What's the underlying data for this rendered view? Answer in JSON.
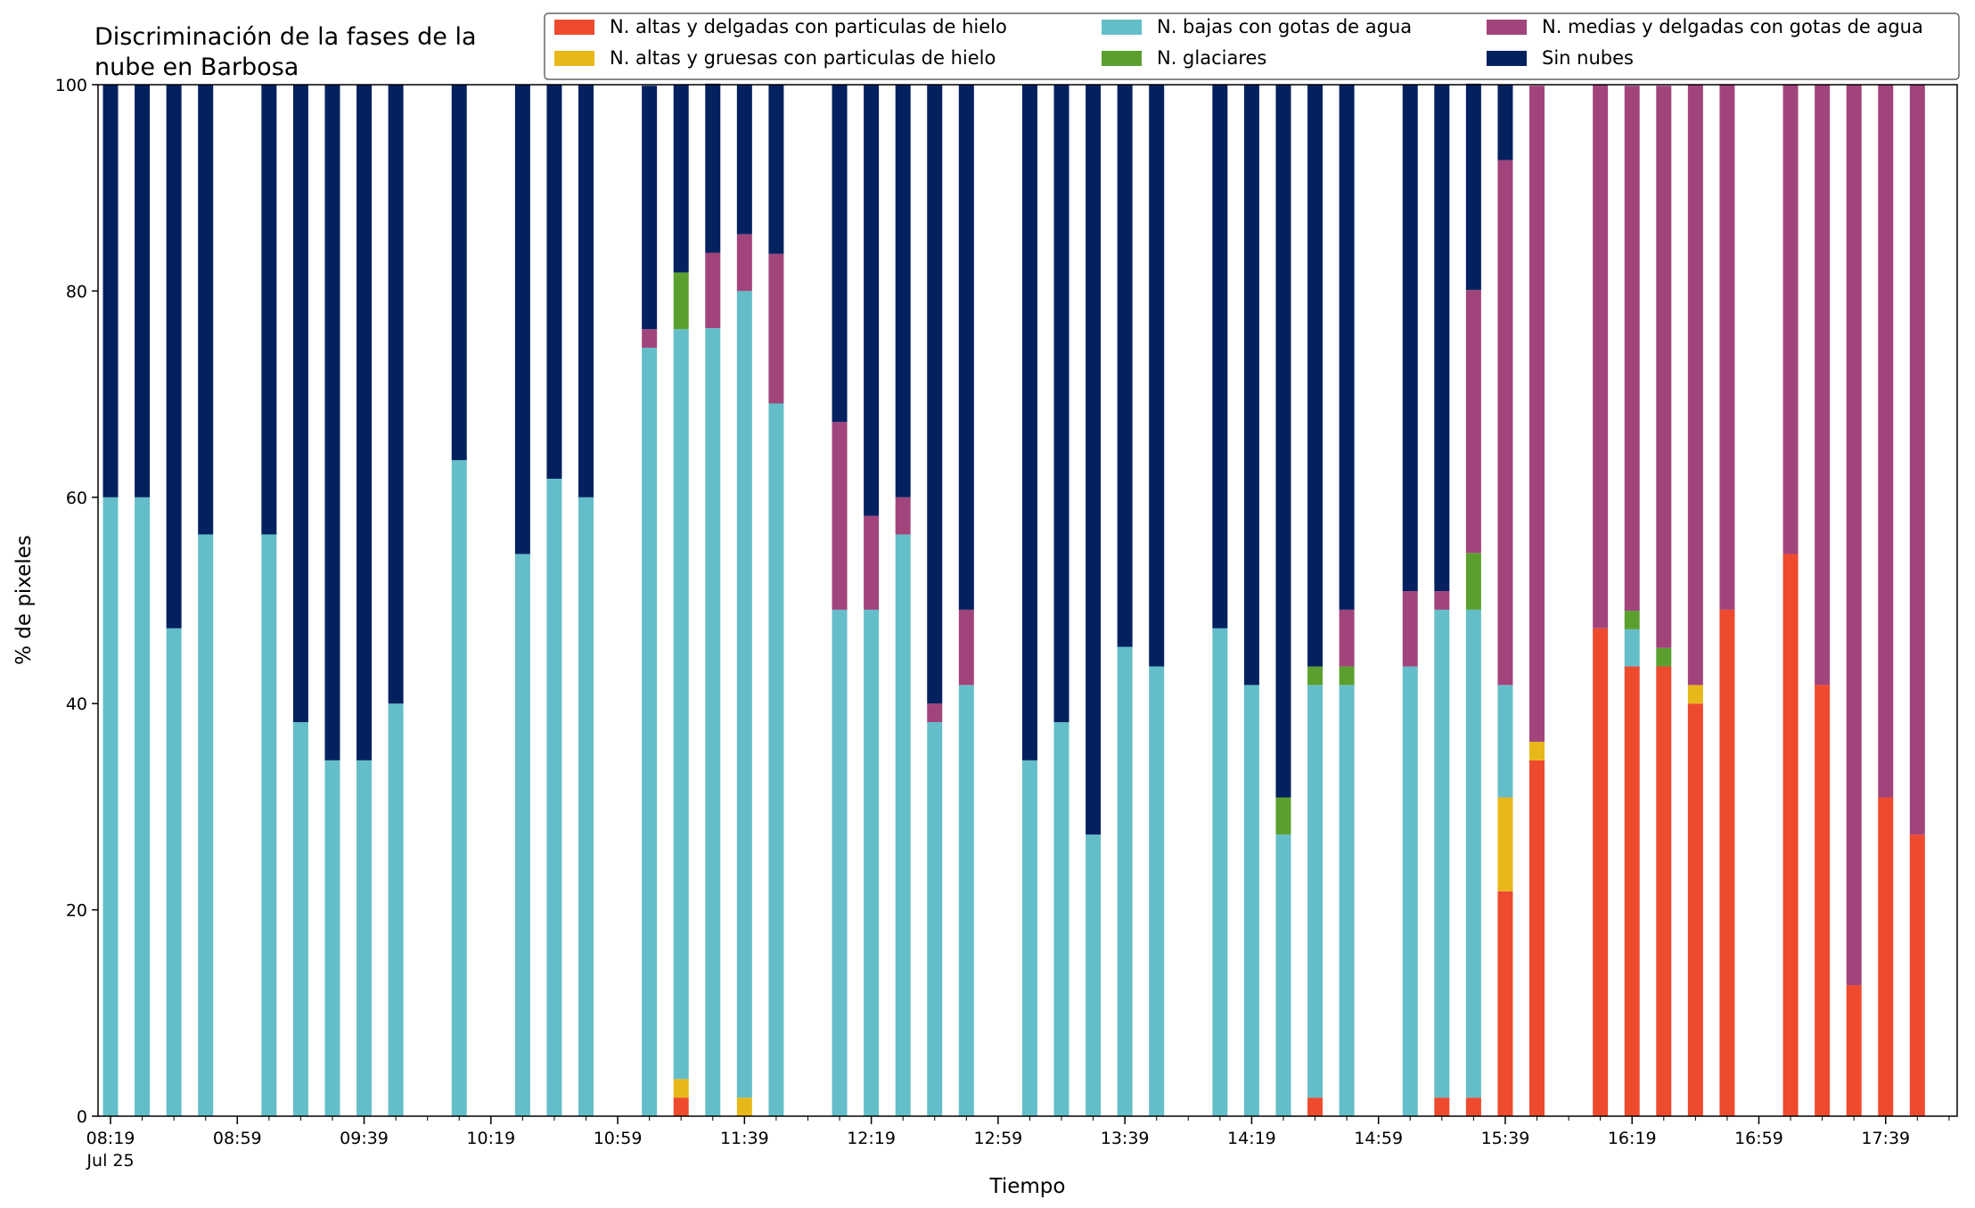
{
  "chart_data": {
    "type": "bar",
    "stacked": true,
    "title_lines": [
      "Discriminación de la fases de la",
      "nube en Barbosa"
    ],
    "xlabel": "Tiempo",
    "ylabel": "% de pixeles",
    "ylim": [
      0,
      100
    ],
    "yticks": [
      0,
      20,
      40,
      60,
      80,
      100
    ],
    "x_unit": "minutes after 08:19 on Jul 25",
    "x_ticks": [
      {
        "x": 0,
        "label": "08:19",
        "sublabel": "Jul 25"
      },
      {
        "x": 40,
        "label": "08:59"
      },
      {
        "x": 80,
        "label": "09:39"
      },
      {
        "x": 120,
        "label": "10:19"
      },
      {
        "x": 160,
        "label": "10:59"
      },
      {
        "x": 200,
        "label": "11:39"
      },
      {
        "x": 240,
        "label": "12:19"
      },
      {
        "x": 280,
        "label": "12:59"
      },
      {
        "x": 320,
        "label": "13:39"
      },
      {
        "x": 360,
        "label": "14:19"
      },
      {
        "x": 400,
        "label": "14:59"
      },
      {
        "x": 440,
        "label": "15:39"
      },
      {
        "x": 480,
        "label": "16:19"
      },
      {
        "x": 520,
        "label": "16:59"
      },
      {
        "x": 560,
        "label": "17:39"
      }
    ],
    "legend_placement": "top-right",
    "grid": false,
    "x": [
      0,
      10,
      20,
      30,
      50,
      60,
      70,
      80,
      90,
      110,
      130,
      140,
      150,
      170,
      180,
      190,
      200,
      210,
      230,
      240,
      250,
      260,
      270,
      290,
      300,
      310,
      320,
      330,
      350,
      360,
      370,
      380,
      390,
      410,
      420,
      430,
      440,
      450,
      470,
      480,
      490,
      500,
      510,
      530,
      540,
      550,
      560,
      570
    ],
    "series": [
      {
        "name": "N. altas y delgadas con particulas de hielo",
        "color": "#EE4A2E",
        "values": [
          0,
          0,
          0,
          0,
          0,
          0,
          0,
          0,
          0,
          0,
          0,
          0,
          0,
          0,
          1.8,
          0,
          0,
          0,
          0,
          0,
          0,
          0,
          0,
          0,
          0,
          0,
          0,
          0,
          0,
          0,
          0,
          1.8,
          0,
          0,
          1.8,
          1.8,
          21.8,
          34.5,
          47.3,
          43.6,
          43.6,
          40,
          49.1,
          54.5,
          41.8,
          12.7,
          30.9,
          27.3
        ]
      },
      {
        "name": "N. altas y gruesas con particulas de hielo",
        "color": "#E8B719",
        "values": [
          0,
          0,
          0,
          0,
          0,
          0,
          0,
          0,
          0,
          0,
          0,
          0,
          0,
          0,
          1.8,
          0,
          1.8,
          0,
          0,
          0,
          0,
          0,
          0,
          0,
          0,
          0,
          0,
          0,
          0,
          0,
          0,
          0,
          0,
          0,
          0,
          0,
          9.1,
          1.8,
          0,
          0,
          0,
          1.8,
          0,
          0,
          0,
          0,
          0,
          0
        ]
      },
      {
        "name": "N. bajas con gotas de agua",
        "color": "#64BEC9",
        "values": [
          60,
          60,
          47.3,
          56.4,
          56.4,
          38.2,
          34.5,
          34.5,
          40,
          63.6,
          54.5,
          61.8,
          60,
          74.5,
          72.7,
          76.4,
          78.2,
          69.1,
          49.1,
          49.1,
          56.4,
          38.2,
          41.8,
          34.5,
          38.2,
          27.3,
          45.5,
          43.6,
          47.3,
          41.8,
          27.3,
          40,
          41.8,
          43.6,
          47.3,
          47.3,
          10.9,
          0,
          0,
          3.6,
          0,
          0,
          0,
          0,
          0,
          0,
          0,
          0
        ]
      },
      {
        "name": "N. glaciares",
        "color": "#5BA02F",
        "values": [
          0,
          0,
          0,
          0,
          0,
          0,
          0,
          0,
          0,
          0,
          0,
          0,
          0,
          0,
          5.5,
          0,
          0,
          0,
          0,
          0,
          0,
          0,
          0,
          0,
          0,
          0,
          0,
          0,
          0,
          0,
          3.6,
          1.8,
          1.8,
          0,
          0,
          5.5,
          0,
          0,
          0,
          1.8,
          1.8,
          0,
          0,
          0,
          0,
          0,
          0,
          0
        ]
      },
      {
        "name": "N. medias y delgadas con gotas de agua",
        "color": "#A2447C",
        "values": [
          0,
          0,
          0,
          0,
          0,
          0,
          0,
          0,
          0,
          0,
          0,
          0,
          0,
          1.8,
          0,
          7.3,
          5.5,
          14.5,
          18.2,
          9.1,
          3.6,
          1.8,
          7.3,
          0,
          0,
          0,
          0,
          0,
          0,
          0,
          0,
          0,
          5.5,
          7.3,
          1.8,
          25.5,
          50.9,
          63.6,
          52.7,
          50.9,
          54.5,
          58.2,
          50.9,
          45.5,
          58.2,
          87.3,
          69.1,
          72.7
        ]
      },
      {
        "name": "Sin nubes",
        "color": "#04215F",
        "values": [
          40,
          40,
          52.7,
          43.6,
          43.6,
          61.8,
          65.5,
          65.5,
          60,
          36.4,
          45.5,
          38.2,
          40,
          23.6,
          18.2,
          16.4,
          14.5,
          16.4,
          32.7,
          41.8,
          40,
          60,
          50.9,
          65.5,
          61.8,
          72.7,
          54.5,
          56.4,
          52.7,
          58.2,
          69.1,
          56.4,
          50.9,
          49.1,
          49.1,
          20,
          7.3,
          0,
          0,
          0,
          0,
          0,
          0,
          0,
          0,
          0,
          0,
          0
        ]
      }
    ]
  }
}
